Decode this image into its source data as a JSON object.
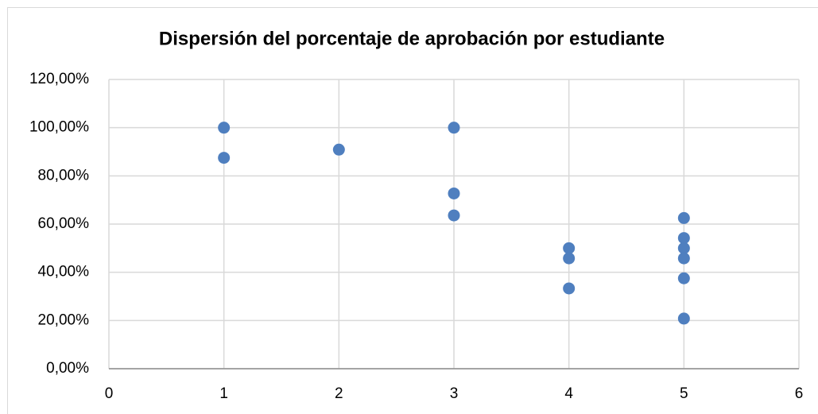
{
  "chart_data": {
    "type": "scatter",
    "title": "Dispersión del porcentaje de aprobación por estudiante",
    "x": [
      1,
      1,
      2,
      3,
      3,
      3,
      4,
      4,
      4,
      5,
      5,
      5,
      5,
      5,
      5
    ],
    "values": [
      100,
      87.5,
      90.9,
      100,
      72.7,
      63.6,
      50,
      45.8,
      33.3,
      62.5,
      54.2,
      50,
      45.8,
      37.5,
      20.8
    ],
    "color": "#4f7fbf",
    "xlim": [
      0,
      6
    ],
    "xticks": [
      0,
      1,
      2,
      3,
      4,
      5,
      6
    ],
    "ylim": [
      0,
      120
    ],
    "yticks": [
      {
        "value": 0,
        "label": "0,00%"
      },
      {
        "value": 20,
        "label": "20,00%"
      },
      {
        "value": 40,
        "label": "40,00%"
      },
      {
        "value": 60,
        "label": "60,00%"
      },
      {
        "value": 80,
        "label": "80,00%"
      },
      {
        "value": 100,
        "label": "100,00%"
      },
      {
        "value": 120,
        "label": "120,00%"
      }
    ],
    "grid": true
  }
}
